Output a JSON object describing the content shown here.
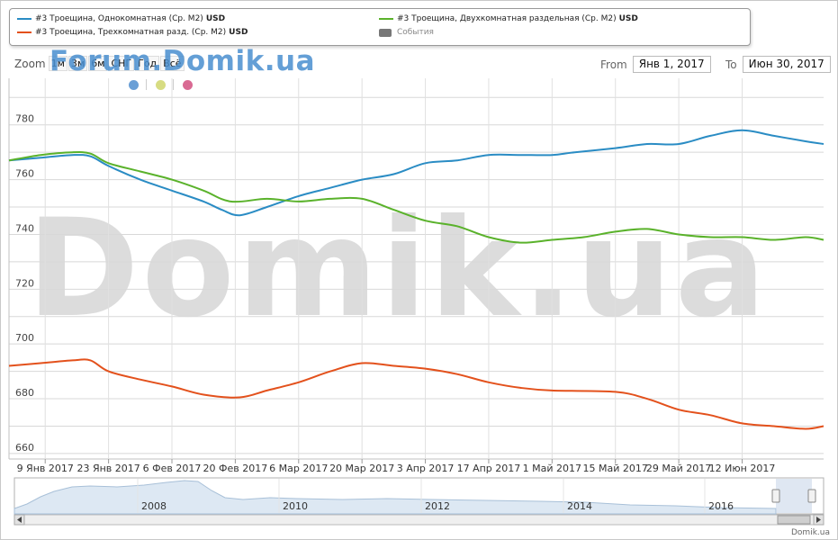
{
  "legend": {
    "items": [
      {
        "label": "#3 Троещина, Однокомнатная (Ср. М2)",
        "unit": "USD",
        "color": "#2a8cc4"
      },
      {
        "label": "#3 Троещина, Двухкомнатная раздельная (Ср. М2)",
        "unit": "USD",
        "color": "#5ab22b"
      },
      {
        "label": "#3 Троещина, Трехкомнатная разд. (Ср. М2)",
        "unit": "USD",
        "color": "#e3511c"
      }
    ],
    "events_label": "События"
  },
  "zoom": {
    "label": "Zoom",
    "buttons": [
      "1м",
      "3м",
      "6м",
      "СНГ",
      "Год",
      "Всё"
    ]
  },
  "range": {
    "from_label": "From",
    "from_value": "Янв 1, 2017",
    "to_label": "To",
    "to_value": "Июн 30, 2017"
  },
  "marker_colors": [
    "#6a9fd6",
    "#d7dc82",
    "#d96a93"
  ],
  "watermark": {
    "top": "Forum.Domik.ua",
    "plot": "Domik.ua"
  },
  "footer": "Domik.ua",
  "chart_data": {
    "type": "line",
    "x_start": "2017-01-01",
    "x_end": "2017-06-30",
    "x_ticks": [
      {
        "date": "2017-01-09",
        "label": "9 Янв 2017"
      },
      {
        "date": "2017-01-23",
        "label": "23 Янв 2017"
      },
      {
        "date": "2017-02-06",
        "label": "6 Фев 2017"
      },
      {
        "date": "2017-02-20",
        "label": "20 Фев 2017"
      },
      {
        "date": "2017-03-06",
        "label": "6 Мар 2017"
      },
      {
        "date": "2017-03-20",
        "label": "20 Мар 2017"
      },
      {
        "date": "2017-04-03",
        "label": "3 Апр 2017"
      },
      {
        "date": "2017-04-17",
        "label": "17 Апр 2017"
      },
      {
        "date": "2017-05-01",
        "label": "1 Май 2017"
      },
      {
        "date": "2017-05-15",
        "label": "15 Май 2017"
      },
      {
        "date": "2017-05-29",
        "label": "29 Май 2017"
      },
      {
        "date": "2017-06-12",
        "label": "12 Июн 2017"
      }
    ],
    "y_ticks": [
      660,
      680,
      700,
      720,
      740,
      760,
      780
    ],
    "ylim": [
      658,
      797
    ],
    "grid": true,
    "legend_position": "top",
    "series": [
      {
        "name": "#3 Троещина, Однокомнатная (Ср. М2)",
        "color": "#2a8cc4",
        "points": [
          [
            "2017-01-01",
            767
          ],
          [
            "2017-01-08",
            768
          ],
          [
            "2017-01-15",
            769
          ],
          [
            "2017-01-19",
            768.5
          ],
          [
            "2017-01-23",
            765
          ],
          [
            "2017-01-30",
            760
          ],
          [
            "2017-02-06",
            756
          ],
          [
            "2017-02-13",
            752
          ],
          [
            "2017-02-17",
            749
          ],
          [
            "2017-02-21",
            747
          ],
          [
            "2017-02-27",
            750
          ],
          [
            "2017-03-06",
            754
          ],
          [
            "2017-03-13",
            757
          ],
          [
            "2017-03-20",
            760
          ],
          [
            "2017-03-27",
            762
          ],
          [
            "2017-04-03",
            766
          ],
          [
            "2017-04-10",
            767
          ],
          [
            "2017-04-17",
            769
          ],
          [
            "2017-04-24",
            769
          ],
          [
            "2017-05-01",
            769
          ],
          [
            "2017-05-06",
            770
          ],
          [
            "2017-05-15",
            771.5
          ],
          [
            "2017-05-22",
            773
          ],
          [
            "2017-05-29",
            773
          ],
          [
            "2017-06-05",
            776
          ],
          [
            "2017-06-12",
            778
          ],
          [
            "2017-06-19",
            776
          ],
          [
            "2017-06-26",
            774
          ],
          [
            "2017-06-30",
            773
          ]
        ]
      },
      {
        "name": "#3 Троещина, Двухкомнатная раздельная (Ср. М2)",
        "color": "#5ab22b",
        "points": [
          [
            "2017-01-01",
            767
          ],
          [
            "2017-01-08",
            769
          ],
          [
            "2017-01-15",
            770
          ],
          [
            "2017-01-19",
            769.5
          ],
          [
            "2017-01-23",
            766
          ],
          [
            "2017-01-30",
            763
          ],
          [
            "2017-02-06",
            760
          ],
          [
            "2017-02-13",
            756
          ],
          [
            "2017-02-19",
            752
          ],
          [
            "2017-02-27",
            753
          ],
          [
            "2017-03-06",
            752
          ],
          [
            "2017-03-13",
            753
          ],
          [
            "2017-03-20",
            753
          ],
          [
            "2017-03-27",
            749
          ],
          [
            "2017-04-03",
            745
          ],
          [
            "2017-04-10",
            743
          ],
          [
            "2017-04-17",
            739
          ],
          [
            "2017-04-24",
            737
          ],
          [
            "2017-05-01",
            738
          ],
          [
            "2017-05-08",
            739
          ],
          [
            "2017-05-15",
            741
          ],
          [
            "2017-05-22",
            742
          ],
          [
            "2017-05-29",
            740
          ],
          [
            "2017-06-05",
            739
          ],
          [
            "2017-06-12",
            739
          ],
          [
            "2017-06-19",
            738
          ],
          [
            "2017-06-26",
            739
          ],
          [
            "2017-06-30",
            738
          ]
        ]
      },
      {
        "name": "#3 Троещина, Трехкомнатная разд. (Ср. М2)",
        "color": "#e3511c",
        "points": [
          [
            "2017-01-01",
            692
          ],
          [
            "2017-01-08",
            693
          ],
          [
            "2017-01-15",
            694
          ],
          [
            "2017-01-19",
            694
          ],
          [
            "2017-01-23",
            690
          ],
          [
            "2017-01-30",
            687
          ],
          [
            "2017-02-06",
            684.5
          ],
          [
            "2017-02-13",
            681.5
          ],
          [
            "2017-02-21",
            680.5
          ],
          [
            "2017-02-27",
            683
          ],
          [
            "2017-03-06",
            686
          ],
          [
            "2017-03-13",
            690
          ],
          [
            "2017-03-20",
            693
          ],
          [
            "2017-03-27",
            692
          ],
          [
            "2017-04-03",
            691
          ],
          [
            "2017-04-10",
            689
          ],
          [
            "2017-04-17",
            686
          ],
          [
            "2017-04-24",
            684
          ],
          [
            "2017-05-01",
            683
          ],
          [
            "2017-05-15",
            682.5
          ],
          [
            "2017-05-22",
            680
          ],
          [
            "2017-05-29",
            676
          ],
          [
            "2017-06-05",
            674
          ],
          [
            "2017-06-12",
            671
          ],
          [
            "2017-06-19",
            670
          ],
          [
            "2017-06-26",
            669
          ],
          [
            "2017-06-30",
            670
          ]
        ]
      }
    ]
  },
  "navigator": {
    "year_labels": [
      "2008",
      "2010",
      "2012",
      "2014",
      "2016"
    ]
  }
}
